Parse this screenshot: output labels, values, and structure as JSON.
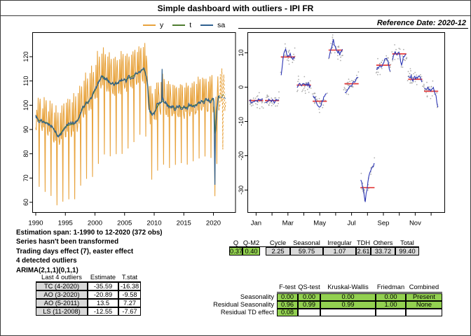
{
  "page": {
    "title": "Simple dashboard with outliers - IPI FR",
    "reference_date": "Reference Date: 2020-12"
  },
  "colors": {
    "series_y": "#E8A33D",
    "series_t": "#4E7C30",
    "series_sa": "#2F608F",
    "subseries_line": "#2B35B5",
    "subseries_mean": "#E23B3B",
    "subseries_dots": "#9A9A9A",
    "cell_green": "#92D050",
    "cell_gray": "#D9D9D9"
  },
  "legend": {
    "items": [
      {
        "label": "y",
        "color": "#E8A33D"
      },
      {
        "label": "t",
        "color": "#4E7C30"
      },
      {
        "label": "sa",
        "color": "#2F608F"
      }
    ]
  },
  "summary": {
    "lines": [
      "Estimation span: 1-1990 to 12-2020 (372 obs)",
      "Series hasn't been transformed",
      "Trading days effect (7), easter effect",
      "4 detected outliers",
      "ARIMA(2,1,1)(0,1,1)"
    ]
  },
  "chart_data": [
    {
      "type": "line",
      "name": "raw-trend-sa-series",
      "title": "",
      "xlabel": "",
      "ylabel": "",
      "x_ticks": [
        "1990",
        "1995",
        "2000",
        "2005",
        "2010",
        "2015",
        "2020"
      ],
      "y_ticks": [
        "60",
        "70",
        "80",
        "90",
        "100",
        "110",
        "120"
      ],
      "ylim": [
        55.7,
        129.5
      ],
      "observed_start": "1990-01",
      "observed_end": "2020-12",
      "forecast_months": 14,
      "series": [
        {
          "name": "y",
          "color": "#E8A33D",
          "role": "raw"
        },
        {
          "name": "t",
          "color": "#4E7C30",
          "role": "trend"
        },
        {
          "name": "sa",
          "color": "#2F608F",
          "role": "seasonally-adjusted"
        }
      ],
      "trend_anchors": [
        [
          1990.0,
          95.2
        ],
        [
          1990.6,
          93.8
        ],
        [
          1991.3,
          93.2
        ],
        [
          1992.0,
          92.8
        ],
        [
          1992.8,
          91.0
        ],
        [
          1993.3,
          88.8
        ],
        [
          1993.8,
          87.3
        ],
        [
          1994.3,
          88.8
        ],
        [
          1995.0,
          91.3
        ],
        [
          1995.8,
          91.8
        ],
        [
          1996.5,
          92.3
        ],
        [
          1997.2,
          94.5
        ],
        [
          1998.0,
          99.0
        ],
        [
          1998.8,
          101.5
        ],
        [
          1999.5,
          103.5
        ],
        [
          2000.2,
          107.0
        ],
        [
          2000.8,
          110.5
        ],
        [
          2001.3,
          112.3
        ],
        [
          2002.0,
          110.2
        ],
        [
          2002.7,
          109.0
        ],
        [
          2003.4,
          108.6
        ],
        [
          2004.1,
          109.8
        ],
        [
          2004.8,
          110.3
        ],
        [
          2005.5,
          110.8
        ],
        [
          2006.2,
          112.0
        ],
        [
          2006.9,
          112.8
        ],
        [
          2007.5,
          113.8
        ],
        [
          2008.1,
          114.8
        ],
        [
          2008.5,
          113.8
        ],
        [
          2008.9,
          109.0
        ],
        [
          2009.2,
          97.5
        ],
        [
          2009.6,
          96.0
        ],
        [
          2010.2,
          97.8
        ],
        [
          2010.8,
          100.3
        ],
        [
          2011.3,
          101.8
        ],
        [
          2012.0,
          100.6
        ],
        [
          2012.8,
          99.4
        ],
        [
          2013.5,
          98.9
        ],
        [
          2014.2,
          99.6
        ],
        [
          2015.0,
          98.9
        ],
        [
          2015.8,
          99.5
        ],
        [
          2016.5,
          99.9
        ],
        [
          2017.2,
          100.4
        ],
        [
          2018.0,
          101.6
        ],
        [
          2018.8,
          102.1
        ],
        [
          2019.5,
          101.9
        ],
        [
          2020.0,
          102.4
        ],
        [
          2020.13,
          100.5
        ],
        [
          2020.21,
          93.0
        ],
        [
          2020.29,
          86.5
        ],
        [
          2020.42,
          92.0
        ],
        [
          2020.58,
          98.5
        ],
        [
          2020.75,
          101.5
        ],
        [
          2020.92,
          103.3
        ]
      ],
      "outlier_overrides": {
        "256": {
          "y_add": 13.5,
          "sa_add": 13.5
        },
        "362": {
          "y": 86.0,
          "sa": 84.0
        },
        "363": {
          "y": 62.5,
          "sa": 67.2
        }
      }
    },
    {
      "type": "seasonal-subseries",
      "name": "si-ratios-by-month",
      "y_ticks": [
        "10",
        "0",
        "-10",
        "-20",
        "-30"
      ],
      "x_labels": [
        "Jan",
        "Mar",
        "May",
        "Jul",
        "Sep",
        "Nov"
      ],
      "months": [
        {
          "label": "Jan",
          "mean": -3.9,
          "si": [
            -3.6,
            -4.2,
            -3.8,
            -4.1,
            -3.7,
            -4.0,
            -3.8
          ]
        },
        {
          "label": "Feb",
          "mean": -3.9,
          "si": [
            -4.3,
            -3.7,
            -4.1,
            -3.8,
            -4.2,
            -3.6,
            -3.3
          ]
        },
        {
          "label": "Mar",
          "mean": 8.8,
          "si": [
            3.2,
            9.2,
            10.6,
            8.6,
            9.4,
            8.4,
            8.8
          ]
        },
        {
          "label": "Apr",
          "mean": 0.6,
          "si": [
            0.2,
            1.0,
            0.2,
            1.0,
            0.4,
            0.9,
            0.2
          ]
        },
        {
          "label": "May",
          "mean": -4.1,
          "si": [
            -2.4,
            -3.2,
            -4.8,
            -5.6,
            -4.4,
            -2.6,
            -1.4
          ]
        },
        {
          "label": "Jun",
          "mean": 10.8,
          "si": [
            8.6,
            11.5,
            13.5,
            11.0,
            10.4,
            9.6,
            10.7
          ]
        },
        {
          "label": "Jul",
          "mean": 1.0,
          "si": [
            -1.8,
            -0.6,
            0.3,
            0.8,
            1.2,
            2.2,
            3.3
          ]
        },
        {
          "label": "Aug",
          "mean": -29.3,
          "si": [
            -27.0,
            -29.0,
            -33.2,
            -28.5,
            -25.2,
            -23.2,
            -22.4
          ]
        },
        {
          "label": "Sep",
          "mean": 6.4,
          "si": [
            5.2,
            6.0,
            5.6,
            6.6,
            8.8,
            8.0,
            4.4
          ]
        },
        {
          "label": "Oct",
          "mean": 9.7,
          "si": [
            8.2,
            10.4,
            9.2,
            10.2,
            6.4,
            9.4,
            9.2
          ]
        },
        {
          "label": "Nov",
          "mean": 2.3,
          "si": [
            2.6,
            3.2,
            2.2,
            3.0,
            2.4,
            3.2,
            1.8
          ]
        },
        {
          "label": "Dec",
          "mean": -1.2,
          "si": [
            -0.2,
            -0.8,
            -0.4,
            -1.0,
            -0.6,
            -2.2,
            -6.0
          ]
        }
      ]
    }
  ],
  "q_table": {
    "headers": [
      "Q",
      "Q-M2",
      "Cycle",
      "Seasonal",
      "Irregular",
      "TDH",
      "Others",
      "Total"
    ],
    "values": [
      "0.37",
      "0.40",
      "2.25",
      "59.75",
      "1.07",
      "2.61",
      "33.72",
      "99.40"
    ],
    "cell_colors": [
      "green",
      "green",
      "gray",
      "gray",
      "gray",
      "gray",
      "gray",
      "gray"
    ]
  },
  "outliers_table": {
    "headers": [
      "Last 4 outliers",
      "Estimate",
      "T.stat"
    ],
    "rows": [
      [
        "TC (4-2020)",
        "-35.59",
        "-16.38"
      ],
      [
        "AO (3-2020)",
        "-20.89",
        "-9.58"
      ],
      [
        "AO (5-2011)",
        "13.5",
        "7.27"
      ],
      [
        "LS (11-2008)",
        "-12.55",
        "-7.67"
      ]
    ]
  },
  "tests_table": {
    "headers": [
      "F-test",
      "QS-test",
      "Kruskal-Wallis",
      "Friedman",
      "Combined"
    ],
    "rows": [
      {
        "label": "Seasonality",
        "values": [
          "0.00",
          "0.00",
          "0.00",
          "0.00",
          "Present"
        ]
      },
      {
        "label": "Residual Seasonality",
        "values": [
          "0.96",
          "0.99",
          "0.99",
          "1.00",
          "None"
        ]
      },
      {
        "label": "Residual TD effect",
        "values": [
          "0.08",
          "",
          "",
          "",
          ""
        ]
      }
    ]
  }
}
